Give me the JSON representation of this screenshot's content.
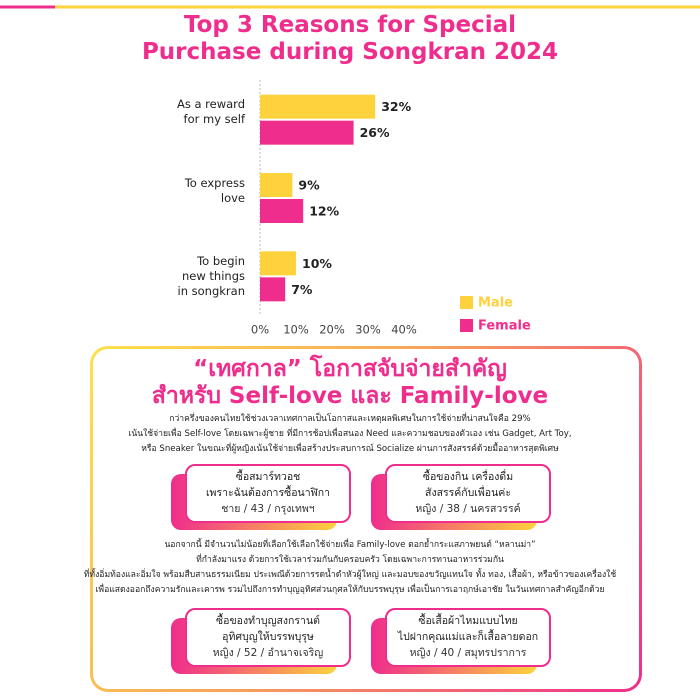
{
  "chart_data": {
    "type": "bar",
    "orientation": "horizontal",
    "title": "Top 3 Reasons for Special Purchase during Songkran 2024",
    "categories": [
      "As a reward\nfor my self",
      "To express\nlove",
      "To begin\nnew things\nin songkran"
    ],
    "series": [
      {
        "name": "Male",
        "color": "#fdd23c",
        "values": [
          32,
          9,
          10
        ],
        "value_labels": [
          "32%",
          "9%",
          "10%"
        ]
      },
      {
        "name": "Female",
        "color": "#ef2d8c",
        "values": [
          26,
          12,
          7
        ],
        "value_labels": [
          "26%",
          "12%",
          "7%"
        ]
      }
    ],
    "xlim": [
      0,
      40
    ],
    "xticks": [
      {
        "value": 0,
        "label": "0%"
      },
      {
        "value": 10,
        "label": "10%"
      },
      {
        "value": 20,
        "label": "20%"
      },
      {
        "value": 30,
        "label": "30%"
      },
      {
        "value": 40,
        "label": "40%"
      }
    ],
    "legend": "bottom-right"
  },
  "section": {
    "heading": [
      "“เทศกาล” โอกาสจับจ่ายสำคัญ",
      "สำหรับ Self-love และ Family-love"
    ],
    "intro": [
      "กว่าครึ่งของคนไทยใช้ช่วงเวลาเทศกาลเป็นโอกาสและเหตุผลพิเศษในการใช้จ่ายที่น่าสนใจคือ 29%",
      "เน้นใช้จ่ายเพื่อ Self-love โดยเฉพาะผู้ชาย ที่มีการช้อปเพื่อสนอง Need และความชอบของตัวเอง เช่น Gadget, Art Toy,",
      "หรือ Sneaker ในขณะที่ผู้หญิงเน้นใช้จ่ายเพื่อสร้างประสบการณ์ Socialize ผ่านการสังสรรค์ด้วยมื้ออาหารสุดพิเศษ"
    ],
    "body": [
      "นอกจากนี้ มีจำนวนไม่น้อยที่เลือกใช้เลือกใช้จ่ายเพื่อ Family-love ตอกย้ำกระแสภาพยนต์ “หลานม่า”",
      "ที่กำลังมาแรง ด้วยการใช้เวลาร่วมกันกับครอบครัว โดยเฉพาะการทานอาหารร่วมกัน",
      "ที่ทั้งอิ่มท้องและอิ่มใจ พร้อมสืบสานธรรมเนียม ประเพณีด้วยการรดน้ำดำหัวผู้ใหญ่ และมอบของขวัญแทนใจ ทั้ง ทอง, เสื้อผ้า, หรือข้าวของเครื่องใช้",
      "เพื่อแสดงออกถึงความรักและเคารพ  รวมไปถึงการทำบุญอุทิศส่วนกุศลให้กับบรรพบุรุษ เพื่อเป็นการเอาฤกษ์เอาชัย ในวันเทศกาลสำคัญอีกด้วย"
    ],
    "cards": [
      {
        "lines": [
          "ซื้อสมาร์ทวอช",
          "เพราะฉันต้องการซื้อนาฬิกา",
          "ชาย / 43 / กรุงเทพฯ"
        ]
      },
      {
        "lines": [
          "ซื้อของกิน เครื่องดื่ม",
          "สังสรรค์กับเพื่อนค่ะ",
          "หญิง / 38 / นครสวรรค์"
        ]
      },
      {
        "lines": [
          "ซื้อของทำบุญสงกรานต์",
          "อุทิศบุญให้บรรพบุรุษ",
          "หญิง / 52 / อำนาจเจริญ"
        ]
      },
      {
        "lines": [
          "ซื้อเสื้อผ้าไหมแบบไทย",
          "ไปฝากคุณแม่และก็เสื้อลายดอก",
          "หญิง / 40 / สมุทรปราการ"
        ]
      }
    ]
  }
}
